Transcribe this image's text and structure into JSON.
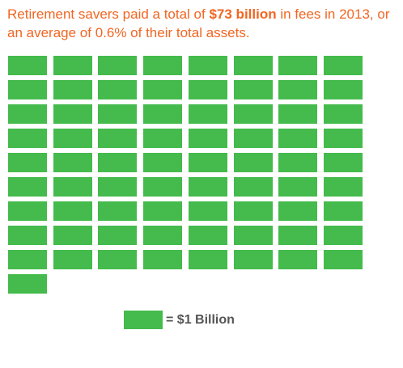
{
  "headline": {
    "part1": "Retirement savers paid a total of ",
    "highlight": "$73 billion",
    "part2": " in fees in 2013, or an average of 0.6% of their total assets."
  },
  "legend": {
    "label": "= $1 Billion"
  },
  "colors": {
    "headline": "#f26522",
    "block": "#44bb4c",
    "legend_text": "#555555"
  },
  "chart_data": {
    "type": "waffle",
    "unit_value": 1,
    "unit_label": "$1 Billion",
    "total": 73,
    "columns": 8
  }
}
